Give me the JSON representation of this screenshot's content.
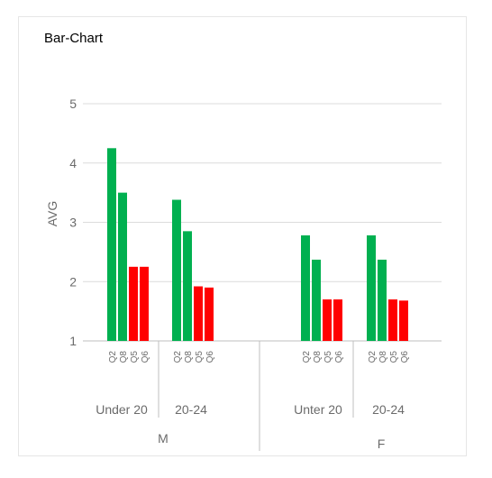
{
  "chart_data": {
    "type": "bar",
    "title": "Bar-Chart",
    "ylabel": "AVG",
    "ylim": [
      1,
      5
    ],
    "yticks": [
      1,
      2,
      3,
      4,
      5
    ],
    "grid": true,
    "colors": {
      "green": "#00b050",
      "red": "#ff0000"
    },
    "groups": [
      {
        "name": "M",
        "subgroups": [
          {
            "name": "Under 20",
            "bars": [
              {
                "label": "Q2",
                "value": 4.25,
                "color": "#00b050"
              },
              {
                "label": "Q8",
                "value": 3.5,
                "color": "#00b050"
              },
              {
                "label": "Q5",
                "value": 2.25,
                "color": "#ff0000"
              },
              {
                "label": "Q6",
                "value": 2.25,
                "color": "#ff0000"
              }
            ]
          },
          {
            "name": "20-24",
            "bars": [
              {
                "label": "Q2",
                "value": 3.38,
                "color": "#00b050"
              },
              {
                "label": "Q8",
                "value": 2.85,
                "color": "#00b050"
              },
              {
                "label": "Q5",
                "value": 1.92,
                "color": "#ff0000"
              },
              {
                "label": "Q6",
                "value": 1.9,
                "color": "#ff0000"
              }
            ]
          }
        ]
      },
      {
        "name": "F",
        "subgroups": [
          {
            "name": "Unter 20",
            "bars": [
              {
                "label": "Q2",
                "value": 2.78,
                "color": "#00b050"
              },
              {
                "label": "Q8",
                "value": 2.37,
                "color": "#00b050"
              },
              {
                "label": "Q5",
                "value": 1.7,
                "color": "#ff0000"
              },
              {
                "label": "Q6",
                "value": 1.7,
                "color": "#ff0000"
              }
            ]
          },
          {
            "name": "20-24",
            "bars": [
              {
                "label": "Q2",
                "value": 2.78,
                "color": "#00b050"
              },
              {
                "label": "Q8",
                "value": 2.37,
                "color": "#00b050"
              },
              {
                "label": "Q5",
                "value": 1.7,
                "color": "#ff0000"
              },
              {
                "label": "Q6",
                "value": 1.68,
                "color": "#ff0000"
              }
            ]
          }
        ]
      }
    ]
  }
}
